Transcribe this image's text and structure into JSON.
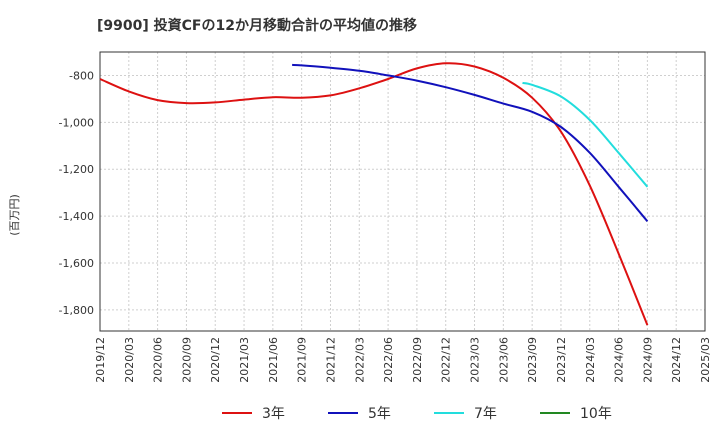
{
  "chart_data": {
    "type": "line",
    "title": "[9900]  投資CFの12か月移動合計の平均値の推移",
    "ylabel": "(百万円)",
    "xlabel": "",
    "ylim": [
      -1890,
      -700
    ],
    "yticks": [
      -800,
      -1000,
      -1200,
      -1400,
      -1600,
      -1800
    ],
    "ytick_labels": [
      "-800",
      "-1,000",
      "-1,200",
      "-1,400",
      "-1,600",
      "-1,800"
    ],
    "x_start": "2019-12",
    "x_end": "2025-03",
    "xtick_labels": [
      "2019/12",
      "2020/03",
      "2020/06",
      "2020/09",
      "2020/12",
      "2021/03",
      "2021/06",
      "2021/09",
      "2021/12",
      "2022/03",
      "2022/06",
      "2022/09",
      "2022/12",
      "2023/03",
      "2023/06",
      "2023/09",
      "2023/12",
      "2024/03",
      "2024/06",
      "2024/09",
      "2024/12",
      "2025/03"
    ],
    "grid": true,
    "legend_position": "bottom",
    "series": [
      {
        "name": "3年",
        "color": "#dd1111",
        "points": [
          [
            "2019-12",
            -815
          ],
          [
            "2020-03",
            -868
          ],
          [
            "2020-06",
            -905
          ],
          [
            "2020-09",
            -918
          ],
          [
            "2020-12",
            -915
          ],
          [
            "2021-03",
            -903
          ],
          [
            "2021-06",
            -893
          ],
          [
            "2021-09",
            -895
          ],
          [
            "2021-12",
            -885
          ],
          [
            "2022-03",
            -855
          ],
          [
            "2022-06",
            -815
          ],
          [
            "2022-09",
            -770
          ],
          [
            "2022-12",
            -748
          ],
          [
            "2023-03",
            -762
          ],
          [
            "2023-06",
            -810
          ],
          [
            "2023-09",
            -895
          ],
          [
            "2023-12",
            -1040
          ],
          [
            "2024-03",
            -1270
          ],
          [
            "2024-06",
            -1560
          ],
          [
            "2024-09",
            -1865
          ]
        ]
      },
      {
        "name": "5年",
        "color": "#1111bb",
        "points": [
          [
            "2021-08",
            -755
          ],
          [
            "2021-09",
            -757
          ],
          [
            "2021-12",
            -767
          ],
          [
            "2022-03",
            -780
          ],
          [
            "2022-06",
            -800
          ],
          [
            "2022-09",
            -822
          ],
          [
            "2022-12",
            -850
          ],
          [
            "2023-03",
            -883
          ],
          [
            "2023-06",
            -920
          ],
          [
            "2023-09",
            -955
          ],
          [
            "2023-12",
            -1020
          ],
          [
            "2024-03",
            -1130
          ],
          [
            "2024-06",
            -1275
          ],
          [
            "2024-09",
            -1422
          ]
        ]
      },
      {
        "name": "7年",
        "color": "#22dddd",
        "points": [
          [
            "2023-08",
            -832
          ],
          [
            "2023-09",
            -840
          ],
          [
            "2023-12",
            -890
          ],
          [
            "2024-03",
            -990
          ],
          [
            "2024-06",
            -1130
          ],
          [
            "2024-09",
            -1275
          ]
        ]
      },
      {
        "name": "10年",
        "color": "#228822",
        "points": []
      }
    ]
  }
}
